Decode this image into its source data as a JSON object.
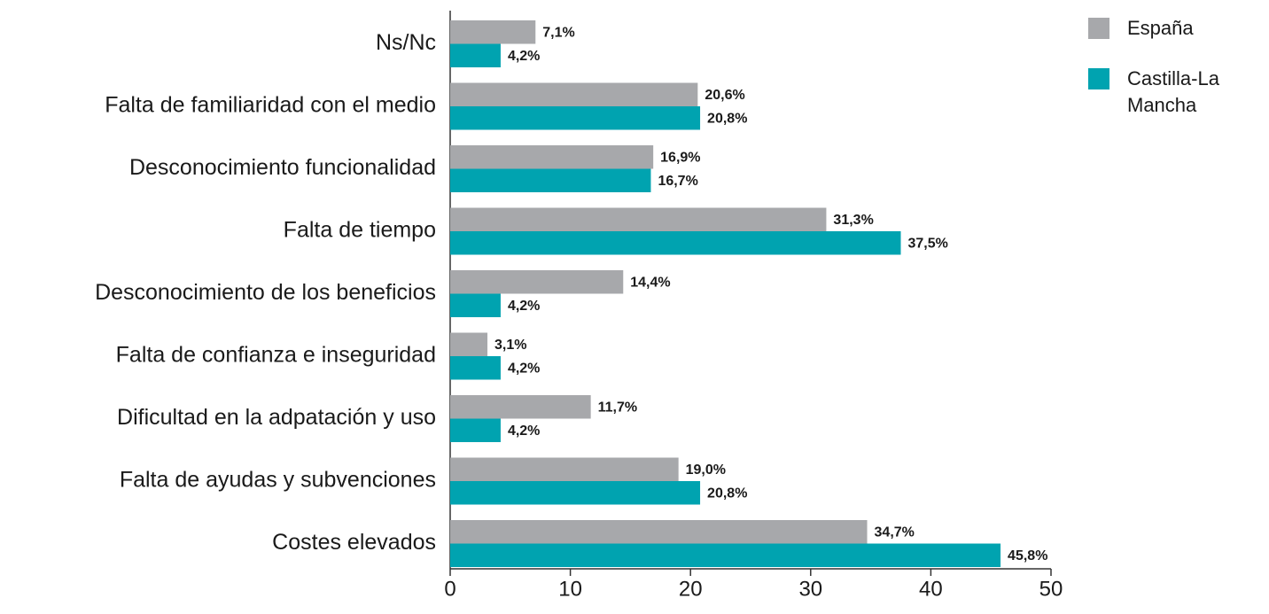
{
  "chart_data": {
    "type": "barh",
    "categories": [
      "Ns/Nc",
      "Falta de familiaridad con el medio",
      "Desconocimiento  funcionalidad",
      "Falta de tiempo",
      "Desconocimiento de los beneficios",
      "Falta de confianza e inseguridad",
      "Dificultad en la adpatación y uso",
      "Falta de ayudas y subvenciones",
      "Costes elevados"
    ],
    "series": [
      {
        "name": "España",
        "color": "#a7a8ab",
        "values": [
          7.1,
          20.6,
          16.9,
          31.3,
          14.4,
          3.1,
          11.7,
          19.0,
          34.7
        ],
        "value_labels": [
          "7,1%",
          "20,6%",
          "16,9%",
          "31,3%",
          "14,4%",
          "3,1%",
          "11,7%",
          "19,0%",
          "34,7%"
        ]
      },
      {
        "name": "Castilla-La Mancha",
        "color": "#00a3b0",
        "values": [
          4.2,
          20.8,
          16.7,
          37.5,
          4.2,
          4.2,
          4.2,
          20.8,
          45.8
        ],
        "value_labels": [
          "4,2%",
          "20,8%",
          "16,7%",
          "37,5%",
          "4,2%",
          "4,2%",
          "4,2%",
          "20,8%",
          "45,8%"
        ]
      }
    ],
    "xlim": [
      0,
      50
    ],
    "xticks": [
      0,
      10,
      20,
      30,
      40,
      50
    ],
    "legend": "top-right"
  }
}
